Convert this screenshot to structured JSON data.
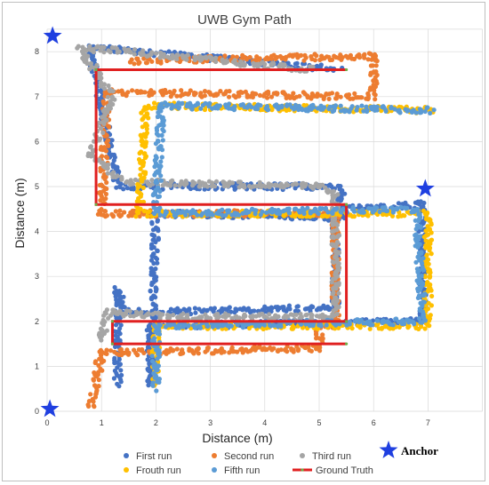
{
  "chart_data": {
    "type": "scatter",
    "title": "UWB Gym Path",
    "xlabel": "Distance (m)",
    "ylabel": "Distance (m)",
    "xlim": [
      0,
      8
    ],
    "ylim": [
      0,
      8.5
    ],
    "x_ticks": [
      "0",
      "1",
      "2",
      "3",
      "4",
      "5",
      "6",
      "7"
    ],
    "y_ticks": [
      "0",
      "1",
      "2",
      "3",
      "4",
      "5",
      "6",
      "7",
      "8"
    ],
    "grid": true,
    "legend_position": "bottom",
    "anchor_label": "Anchor",
    "anchor_color": "#1f3fe0",
    "anchors": [
      {
        "x": 0.1,
        "y": 8.35
      },
      {
        "x": 6.95,
        "y": 4.95
      },
      {
        "x": 0.05,
        "y": 0.05
      }
    ],
    "ground_truth": {
      "name": "Ground Truth",
      "color": "#e02020",
      "points": [
        [
          5.5,
          1.5
        ],
        [
          1.2,
          1.5
        ],
        [
          1.2,
          2.0
        ],
        [
          5.5,
          2.0
        ],
        [
          5.5,
          4.6
        ],
        [
          0.9,
          4.6
        ],
        [
          0.9,
          7.6
        ],
        [
          5.5,
          7.6
        ]
      ]
    },
    "series": [
      {
        "name": "First run",
        "color": "#4472c4",
        "path": [
          [
            1.3,
            0.6
          ],
          [
            1.3,
            2.7
          ],
          [
            1.4,
            2.2
          ],
          [
            5.3,
            2.3
          ],
          [
            5.3,
            4.5
          ],
          [
            6.9,
            4.6
          ],
          [
            6.9,
            2.0
          ],
          [
            1.9,
            1.9
          ],
          [
            1.9,
            0.6
          ],
          [
            2.0,
            4.4
          ],
          [
            5.4,
            4.3
          ],
          [
            5.4,
            5.0
          ],
          [
            1.3,
            5.0
          ],
          [
            0.8,
            8.1
          ],
          [
            5.4,
            7.6
          ]
        ]
      },
      {
        "name": "Second run",
        "color": "#ed7d31",
        "path": [
          [
            0.8,
            0.1
          ],
          [
            1.0,
            1.3
          ],
          [
            5.0,
            1.4
          ],
          [
            5.0,
            1.9
          ],
          [
            5.3,
            1.9
          ],
          [
            5.3,
            4.4
          ],
          [
            1.0,
            4.4
          ],
          [
            1.1,
            7.1
          ],
          [
            6.0,
            7.0
          ],
          [
            6.0,
            7.9
          ],
          [
            1.5,
            7.8
          ]
        ]
      },
      {
        "name": "Third run",
        "color": "#a5a5a5",
        "path": [
          [
            1.0,
            1.6
          ],
          [
            1.1,
            2.2
          ],
          [
            2.3,
            2.1
          ],
          [
            5.3,
            2.1
          ],
          [
            5.3,
            4.8
          ],
          [
            5.0,
            5.0
          ],
          [
            1.4,
            5.1
          ],
          [
            0.8,
            5.7
          ],
          [
            1.2,
            7.0
          ],
          [
            0.6,
            8.1
          ],
          [
            4.9,
            7.6
          ]
        ]
      },
      {
        "name": "Frouth run",
        "color": "#ffc000",
        "path": [
          [
            2.0,
            0.6
          ],
          [
            2.0,
            1.9
          ],
          [
            7.0,
            1.9
          ],
          [
            7.0,
            4.4
          ],
          [
            1.7,
            4.4
          ],
          [
            1.8,
            6.8
          ],
          [
            7.1,
            6.7
          ]
        ]
      },
      {
        "name": "Fifth run",
        "color": "#5b9bd5",
        "path": [
          [
            2.0,
            0.5
          ],
          [
            2.0,
            1.9
          ],
          [
            6.9,
            2.0
          ],
          [
            6.8,
            4.5
          ],
          [
            2.0,
            4.4
          ],
          [
            2.1,
            6.8
          ],
          [
            7.1,
            6.7
          ]
        ]
      }
    ]
  }
}
